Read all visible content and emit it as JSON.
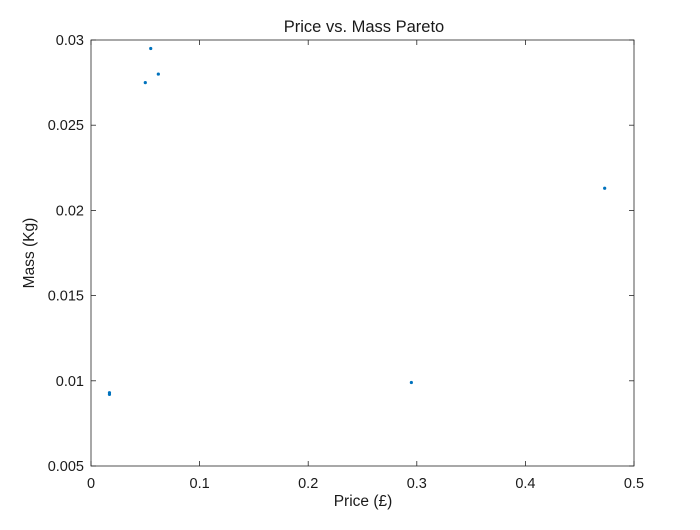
{
  "chart_data": {
    "type": "scatter",
    "title": "Price vs. Mass Pareto",
    "xlabel": "Price (£)",
    "ylabel": "Mass (Kg)",
    "xlim": [
      0,
      0.5
    ],
    "ylim": [
      0.005,
      0.03
    ],
    "xticks": [
      0,
      0.1,
      0.2,
      0.3,
      0.4,
      0.5
    ],
    "xtick_labels": [
      "0",
      "0.1",
      "0.2",
      "0.3",
      "0.4",
      "0.5"
    ],
    "yticks": [
      0.005,
      0.01,
      0.015,
      0.02,
      0.025,
      0.03
    ],
    "ytick_labels": [
      "0.005",
      "0.01",
      "0.015",
      "0.02",
      "0.025",
      "0.03"
    ],
    "grid": false,
    "marker_color": "#0072BD",
    "series": [
      {
        "x": [
          0.017,
          0.017,
          0.05,
          0.055,
          0.062,
          0.295,
          0.473
        ],
        "y": [
          0.0093,
          0.0092,
          0.0275,
          0.0295,
          0.028,
          0.0099,
          0.0213
        ]
      }
    ]
  }
}
